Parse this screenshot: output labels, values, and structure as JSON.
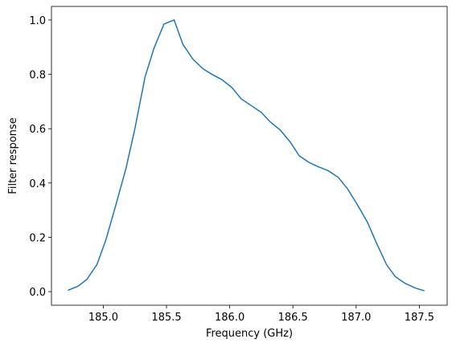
{
  "chart_data": {
    "type": "line",
    "x_label": "Frequency (GHz)",
    "y_label": "Filter response",
    "x": [
      184.72,
      184.8,
      184.87,
      184.95,
      185.02,
      185.1,
      185.18,
      185.25,
      185.33,
      185.4,
      185.48,
      185.56,
      185.63,
      185.71,
      185.79,
      185.86,
      185.94,
      186.02,
      186.09,
      186.17,
      186.25,
      186.32,
      186.4,
      186.48,
      186.55,
      186.63,
      186.7,
      186.78,
      186.86,
      186.93,
      187.01,
      187.09,
      187.16,
      187.24,
      187.31,
      187.39,
      187.47,
      187.54
    ],
    "series": [
      {
        "color": "#1f77b4",
        "values": [
          0.005,
          0.02,
          0.045,
          0.1,
          0.19,
          0.32,
          0.455,
          0.6,
          0.79,
          0.895,
          0.985,
          1.0,
          0.91,
          0.855,
          0.82,
          0.8,
          0.78,
          0.75,
          0.71,
          0.685,
          0.66,
          0.625,
          0.595,
          0.55,
          0.5,
          0.475,
          0.46,
          0.445,
          0.42,
          0.38,
          0.32,
          0.255,
          0.18,
          0.1,
          0.055,
          0.03,
          0.013,
          0.003
        ]
      }
    ],
    "xlim": [
      184.59,
      187.72
    ],
    "ylim": [
      -0.05,
      1.05
    ],
    "xticks": [
      {
        "value": 185,
        "label": "185.0"
      },
      185.5,
      {
        "value": 186,
        "label": "186.0"
      },
      186.5,
      {
        "value": 187,
        "label": "187.0"
      },
      187.5
    ],
    "yticks": [
      {
        "value": 0,
        "label": "0.0"
      },
      0.2,
      0.4,
      0.6,
      0.8,
      {
        "value": 1,
        "label": "1.0"
      }
    ]
  }
}
